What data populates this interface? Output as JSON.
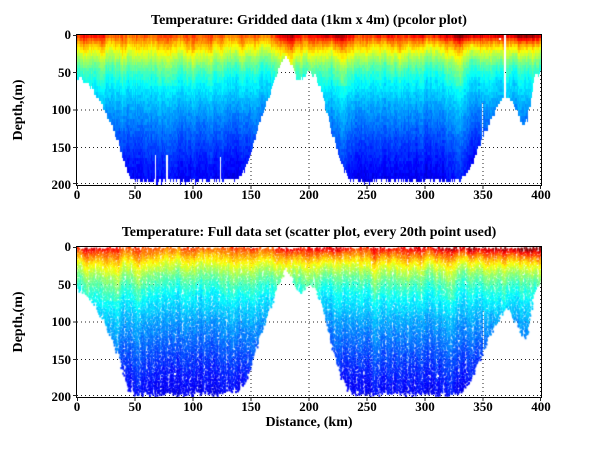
{
  "figure": {
    "background": "#ffffff",
    "kind": "MATLAB-style figure with two stacked temperature section plots"
  },
  "chart_data": {
    "shared_field": {
      "description": "Ocean temperature section: warm (red/orange) surface layer over cold (blue) deep water; white = no data below seafloor",
      "colormap": "jet",
      "x_range_km": [
        0,
        400
      ],
      "depth_range_m": [
        0,
        200
      ],
      "y_axis": "reversed (depth increases downward)",
      "warmth_depth_decay_m": 11,
      "temp_norm_vs_depth": [
        [
          0,
          0.72
        ],
        [
          6,
          0.69
        ],
        [
          12,
          0.655
        ],
        [
          18,
          0.615
        ],
        [
          25,
          0.57
        ],
        [
          32,
          0.53
        ],
        [
          40,
          0.48
        ],
        [
          50,
          0.43
        ],
        [
          62,
          0.385
        ],
        [
          75,
          0.345
        ],
        [
          90,
          0.305
        ],
        [
          105,
          0.27
        ],
        [
          120,
          0.24
        ],
        [
          140,
          0.2
        ],
        [
          160,
          0.165
        ],
        [
          180,
          0.135
        ],
        [
          200,
          0.11
        ]
      ],
      "surface_warmth_vs_x": [
        [
          0,
          0.14
        ],
        [
          5,
          0.2
        ],
        [
          10,
          0.16
        ],
        [
          16,
          0.19
        ],
        [
          24,
          0.12
        ],
        [
          35,
          0.09
        ],
        [
          50,
          0.06
        ],
        [
          65,
          0.09
        ],
        [
          80,
          0.07
        ],
        [
          95,
          0.1
        ],
        [
          110,
          0.08
        ],
        [
          125,
          0.07
        ],
        [
          140,
          0.09
        ],
        [
          155,
          0.1
        ],
        [
          168,
          0.12
        ],
        [
          178,
          0.19
        ],
        [
          186,
          0.21
        ],
        [
          196,
          0.14
        ],
        [
          205,
          0.17
        ],
        [
          214,
          0.22
        ],
        [
          224,
          0.24
        ],
        [
          233,
          0.16
        ],
        [
          245,
          0.11
        ],
        [
          257,
          0.15
        ],
        [
          268,
          0.18
        ],
        [
          280,
          0.14
        ],
        [
          292,
          0.2
        ],
        [
          303,
          0.17
        ],
        [
          313,
          0.22
        ],
        [
          322,
          0.2
        ],
        [
          332,
          0.27
        ],
        [
          340,
          0.32
        ],
        [
          348,
          0.24
        ],
        [
          356,
          0.22
        ],
        [
          364,
          0.28
        ],
        [
          372,
          0.24
        ],
        [
          380,
          0.31
        ],
        [
          387,
          0.36
        ],
        [
          393,
          0.32
        ],
        [
          400,
          0.28
        ]
      ],
      "bathymetry_vs_x": [
        [
          0,
          55
        ],
        [
          8,
          63
        ],
        [
          14,
          74
        ],
        [
          20,
          90
        ],
        [
          26,
          108
        ],
        [
          32,
          128
        ],
        [
          37,
          150
        ],
        [
          41,
          172
        ],
        [
          45,
          190
        ],
        [
          50,
          195
        ],
        [
          60,
          194
        ],
        [
          70,
          196
        ],
        [
          80,
          193
        ],
        [
          90,
          196
        ],
        [
          100,
          195
        ],
        [
          110,
          194
        ],
        [
          120,
          196
        ],
        [
          130,
          193
        ],
        [
          140,
          190
        ],
        [
          146,
          176
        ],
        [
          152,
          146
        ],
        [
          158,
          116
        ],
        [
          164,
          90
        ],
        [
          170,
          62
        ],
        [
          175,
          42
        ],
        [
          180,
          27
        ],
        [
          184,
          35
        ],
        [
          189,
          57
        ],
        [
          193,
          60
        ],
        [
          197,
          52
        ],
        [
          202,
          49
        ],
        [
          206,
          55
        ],
        [
          210,
          72
        ],
        [
          215,
          100
        ],
        [
          220,
          132
        ],
        [
          225,
          158
        ],
        [
          230,
          180
        ],
        [
          236,
          193
        ],
        [
          250,
          195
        ],
        [
          265,
          193
        ],
        [
          280,
          195
        ],
        [
          295,
          194
        ],
        [
          310,
          195
        ],
        [
          325,
          194
        ],
        [
          332,
          191
        ],
        [
          338,
          179
        ],
        [
          344,
          161
        ],
        [
          350,
          136
        ],
        [
          355,
          118
        ],
        [
          360,
          104
        ],
        [
          364,
          92
        ],
        [
          368,
          84
        ],
        [
          371,
          80
        ],
        [
          374,
          86
        ],
        [
          377,
          95
        ],
        [
          380,
          104
        ],
        [
          383,
          116
        ],
        [
          386,
          121
        ],
        [
          389,
          110
        ],
        [
          391,
          86
        ],
        [
          393,
          66
        ],
        [
          395,
          57
        ],
        [
          398,
          51
        ],
        [
          400,
          48
        ]
      ]
    },
    "charts": [
      {
        "type": "heatmap",
        "render": "pcolor",
        "title": "Temperature: Gridded data (1km x 4m) (pcolor plot)",
        "xlabel": "",
        "ylabel": "Depth,(m)",
        "x_ticks": [
          0,
          50,
          100,
          150,
          200,
          250,
          300,
          350,
          400
        ],
        "y_ticks": [
          0,
          50,
          100,
          150,
          200
        ],
        "xlim": [
          0,
          400
        ],
        "ylim": [
          0,
          200
        ],
        "grid": "dotted",
        "cell_km": 1,
        "cell_m": 4,
        "seed": 7,
        "gaps": [
          {
            "x_km": 67,
            "from_m": 160,
            "to_m": 200,
            "w": 1.3
          },
          {
            "x_km": 77,
            "from_m": 160,
            "to_m": 200,
            "w": 1.3
          },
          {
            "x_km": 123,
            "from_m": 162,
            "to_m": 200,
            "w": 1.3
          },
          {
            "x_km": 349,
            "from_m": 90,
            "to_m": 200,
            "w": 1.3
          },
          {
            "x_km": 368,
            "from_m": 0,
            "to_m": 200,
            "w": 2.2
          }
        ],
        "specks": [
          {
            "x_km": 364,
            "z_m": 4
          }
        ]
      },
      {
        "type": "scatter",
        "render": "scatter",
        "title": "Temperature: Full data set (scatter plot, every 20th point used)",
        "xlabel": "Distance, (km)",
        "ylabel": "Depth,(m)",
        "x_ticks": [
          0,
          50,
          100,
          150,
          200,
          250,
          300,
          350,
          400
        ],
        "y_ticks": [
          0,
          50,
          100,
          150,
          200
        ],
        "xlim": [
          0,
          400
        ],
        "ylim": [
          0,
          200
        ],
        "grid": "dotted",
        "subsample": "every 20th point",
        "seed": 13,
        "gaps": [
          {
            "x_km": 350,
            "from_m": 85,
            "to_m": 135,
            "w": 1.3
          }
        ],
        "specks": [
          {
            "x_km": 310,
            "z_m": 170
          },
          {
            "x_km": 84,
            "z_m": 168
          }
        ]
      }
    ]
  }
}
